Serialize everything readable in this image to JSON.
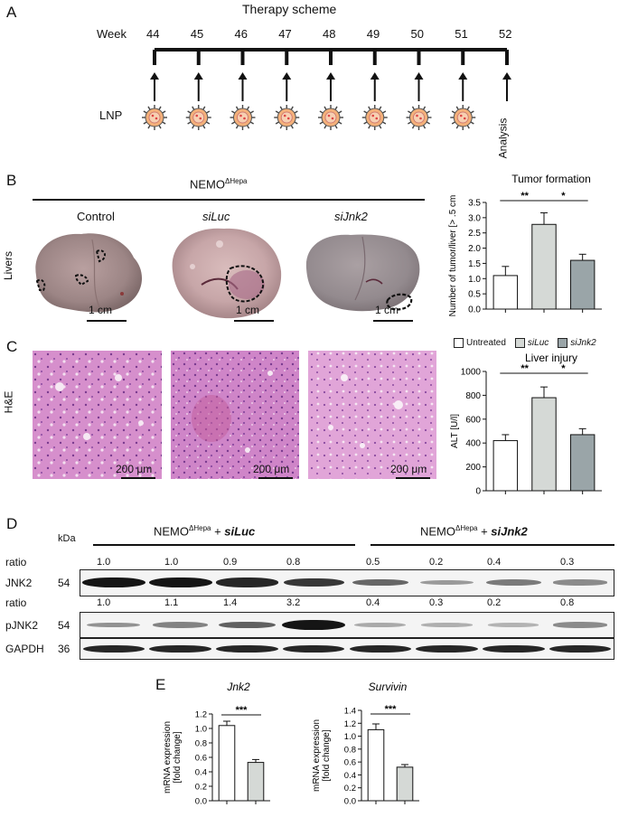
{
  "panels": {
    "a": "A",
    "b": "B",
    "c": "C",
    "d": "D",
    "e": "E"
  },
  "scheme": {
    "title": "Therapy scheme",
    "week_label": "Week",
    "weeks": [
      "44",
      "45",
      "46",
      "47",
      "48",
      "49",
      "50",
      "51",
      "52"
    ],
    "lnp_label": "LNP",
    "analysis_label": "Analysis"
  },
  "livers": {
    "group_title": "NEMO",
    "group_sup": "ΔHepa",
    "row_label": "Livers",
    "conditions": [
      "Control",
      "siLuc",
      "siJnk2"
    ],
    "scale_label": "1 cm"
  },
  "he": {
    "row_label": "H&E",
    "scale_label": "200 μm"
  },
  "legend": {
    "items": [
      {
        "label": "Untreated",
        "color": "#ffffff"
      },
      {
        "label": "siLuc",
        "color": "#d5d9d6"
      },
      {
        "label": "siJnk2",
        "color": "#9aa5a8"
      }
    ]
  },
  "chart_data": [
    {
      "type": "bar",
      "title": "Tumor formation",
      "ylabel": "Number of tumor/liver [> .5 cm",
      "categories": [
        "Untreated",
        "siLuc",
        "siJnk2"
      ],
      "values": [
        1.1,
        2.78,
        1.6
      ],
      "errors": [
        0.3,
        0.38,
        0.2
      ],
      "colors": [
        "#ffffff",
        "#d5d9d6",
        "#9aa5a8"
      ],
      "ylim": [
        0,
        3.5
      ],
      "yticks": [
        "0.0",
        "0.5",
        "1.0",
        "1.5",
        "2.0",
        "2.5",
        "3.0",
        "3.5"
      ],
      "significance": [
        {
          "from": 0,
          "to": 1,
          "label": "**"
        },
        {
          "from": 1,
          "to": 2,
          "label": "*"
        }
      ]
    },
    {
      "type": "bar",
      "title": "Liver injury",
      "ylabel": "ALT [U/l]",
      "categories": [
        "Untreated",
        "siLuc",
        "siJnk2"
      ],
      "values": [
        420,
        780,
        470
      ],
      "errors": [
        50,
        90,
        50
      ],
      "colors": [
        "#ffffff",
        "#d5d9d6",
        "#9aa5a8"
      ],
      "ylim": [
        0,
        1000
      ],
      "yticks": [
        "0",
        "200",
        "400",
        "600",
        "800",
        "1000"
      ],
      "significance": [
        {
          "from": 0,
          "to": 1,
          "label": "**"
        },
        {
          "from": 1,
          "to": 2,
          "label": "*"
        }
      ]
    },
    {
      "type": "bar",
      "title": "Jnk2",
      "ylabel": "mRNA expression [fold change]",
      "categories": [
        "siLuc",
        "siJnk2"
      ],
      "values": [
        1.04,
        0.53
      ],
      "errors": [
        0.06,
        0.04
      ],
      "colors": [
        "#ffffff",
        "#d5d9d6"
      ],
      "ylim": [
        0,
        1.2
      ],
      "yticks": [
        "0.0",
        "0.2",
        "0.4",
        "0.6",
        "0.8",
        "1.0",
        "1.2"
      ],
      "significance": [
        {
          "from": 0,
          "to": 1,
          "label": "***"
        }
      ]
    },
    {
      "type": "bar",
      "title": "Survivin",
      "ylabel": "mRNA expression [fold change]",
      "categories": [
        "siLuc",
        "siJnk2"
      ],
      "values": [
        1.1,
        0.52
      ],
      "errors": [
        0.09,
        0.04
      ],
      "colors": [
        "#ffffff",
        "#d5d9d6"
      ],
      "ylim": [
        0,
        1.4
      ],
      "yticks": [
        "0.0",
        "0.2",
        "0.4",
        "0.6",
        "0.8",
        "1.0",
        "1.2",
        "1.4"
      ],
      "significance": [
        {
          "from": 0,
          "to": 1,
          "label": "***"
        }
      ]
    }
  ],
  "western": {
    "kda_label": "kDa",
    "group1": {
      "prefix": "NEMO",
      "sup": "ΔHepa",
      "plus": " + ",
      "treat": "siLuc"
    },
    "group2": {
      "prefix": "NEMO",
      "sup": "ΔHepa",
      "plus": " + ",
      "treat": "siJnk2"
    },
    "ratio_label": "ratio",
    "ratios_jnk2": [
      "1.0",
      "1.0",
      "0.9",
      "0.8",
      "0.5",
      "0.2",
      "0.4",
      "0.3"
    ],
    "ratios_pjnk2": [
      "1.0",
      "1.1",
      "1.4",
      "3.2",
      "0.4",
      "0.3",
      "0.2",
      "0.8"
    ],
    "blots": [
      {
        "name": "JNK2",
        "kda": "54",
        "intensity": [
          1.0,
          1.0,
          0.9,
          0.8,
          0.5,
          0.2,
          0.4,
          0.3
        ]
      },
      {
        "name": "pJNK2",
        "kda": "54",
        "intensity": [
          0.25,
          0.35,
          0.55,
          1.0,
          0.1,
          0.08,
          0.05,
          0.3
        ]
      },
      {
        "name": "GAPDH",
        "kda": "36",
        "intensity": [
          0.9,
          0.9,
          0.9,
          0.9,
          0.9,
          0.9,
          0.9,
          0.9
        ]
      }
    ]
  }
}
